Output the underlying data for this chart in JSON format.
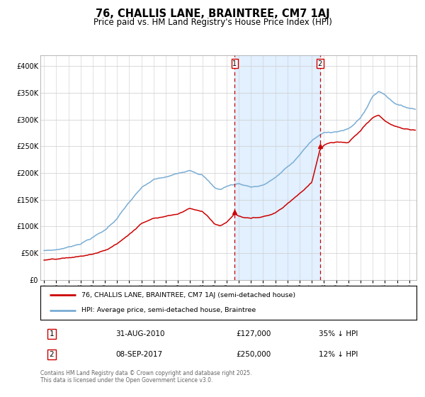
{
  "title": "76, CHALLIS LANE, BRAINTREE, CM7 1AJ",
  "subtitle": "Price paid vs. HM Land Registry's House Price Index (HPI)",
  "title_fontsize": 10.5,
  "subtitle_fontsize": 8.5,
  "ylim": [
    0,
    420000
  ],
  "yticks": [
    0,
    50000,
    100000,
    150000,
    200000,
    250000,
    300000,
    350000,
    400000
  ],
  "ytick_labels": [
    "£0",
    "£50K",
    "£100K",
    "£150K",
    "£200K",
    "£250K",
    "£300K",
    "£350K",
    "£400K"
  ],
  "red_line_color": "#cc0000",
  "blue_line_color": "#7aadd4",
  "shade_color": "#ddeeff",
  "dashed_line_color": "#cc0000",
  "purchase1_year": 2010.667,
  "purchase1_price_val": 127000,
  "purchase2_year": 2017.667,
  "purchase2_price_val": 250000,
  "purchase1_date": "31-AUG-2010",
  "purchase1_price": "£127,000",
  "purchase1_hpi": "35% ↓ HPI",
  "purchase2_date": "08-SEP-2017",
  "purchase2_price": "£250,000",
  "purchase2_hpi": "12% ↓ HPI",
  "legend_line1": "76, CHALLIS LANE, BRAINTREE, CM7 1AJ (semi-detached house)",
  "legend_line2": "HPI: Average price, semi-detached house, Braintree",
  "footnote": "Contains HM Land Registry data © Crown copyright and database right 2025.\nThis data is licensed under the Open Government Licence v3.0.",
  "grid_color": "#cccccc",
  "background_color": "#ffffff",
  "x_start_year": 1995,
  "x_end_year": 2025
}
